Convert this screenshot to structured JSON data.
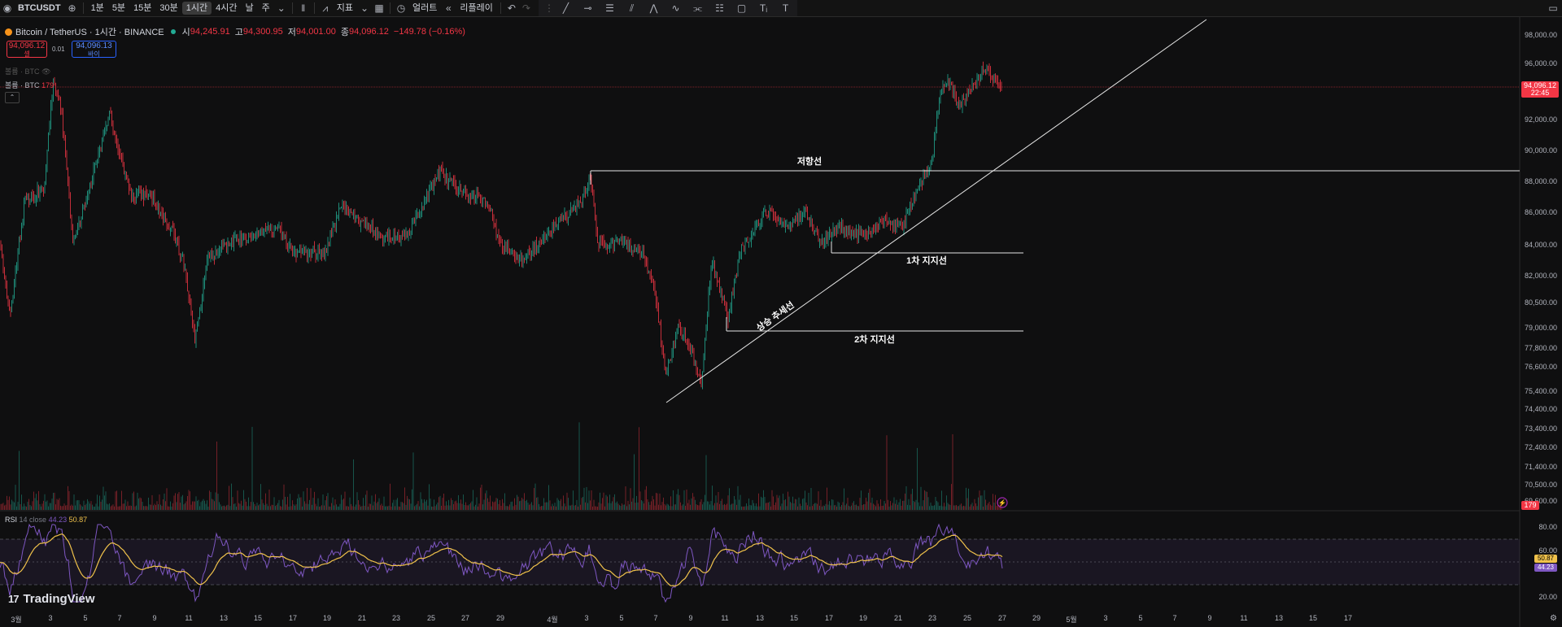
{
  "toolbar": {
    "symbol": "BTCUSDT",
    "intervals": [
      "1분",
      "5분",
      "15분",
      "30분",
      "1시간",
      "4시간",
      "날",
      "주"
    ],
    "active_interval": "1시간",
    "indicators_label": "지표",
    "alert_label": "얼러트",
    "replay_label": "리플레이"
  },
  "legend": {
    "title": "Bitcoin / TetherUS · 1시간 · BINANCE",
    "open_label": "시",
    "open": "94,245.91",
    "high_label": "고",
    "high": "94,300.95",
    "low_label": "저",
    "low": "94,001.00",
    "close_label": "종",
    "close": "94,096.12",
    "change": "−149.78 (−0.16%)"
  },
  "trade": {
    "sell_price": "94,096.12",
    "sell_label": "셀",
    "spread": "0.01",
    "buy_price": "94,096.13",
    "buy_label": "바이"
  },
  "volume_indicator": {
    "label": "볼륨 · BTC",
    "label2": "볼륨 · BTC",
    "value": "179"
  },
  "price_scale": [
    "98,000.00",
    "96,000.00",
    "92,000.00",
    "90,000.00",
    "88,000.00",
    "86,000.00",
    "84,000.00",
    "82,000.00",
    "80,500.00",
    "79,000.00",
    "77,800.00",
    "76,600.00",
    "75,400.00",
    "74,400.00",
    "73,400.00",
    "72,400.00",
    "71,400.00",
    "70,500.00",
    "69,600.00"
  ],
  "last_price": {
    "value": "94,096.12",
    "countdown": "22:45",
    "color": "#f23645"
  },
  "volume_tag": "179",
  "annotations": {
    "resistance": "저항선",
    "support1": "1차 지지선",
    "support2": "2차 지지선",
    "trendline": "상승 추세선"
  },
  "rsi": {
    "label": "RSI",
    "params": "14 close",
    "value": "44.23",
    "ma_value": "50.87",
    "scale": [
      "80.00",
      "60.00",
      "20.00"
    ],
    "colors": {
      "rsi": "#7e57c2",
      "ma": "#f0c24b"
    }
  },
  "time_axis": [
    "3월",
    "3",
    "5",
    "7",
    "9",
    "11",
    "13",
    "15",
    "17",
    "19",
    "21",
    "23",
    "25",
    "27",
    "29",
    "4월",
    "3",
    "5",
    "7",
    "9",
    "11",
    "13",
    "15",
    "17",
    "19",
    "21",
    "23",
    "25",
    "27",
    "29",
    "5월",
    "3",
    "5",
    "7",
    "9",
    "11",
    "13",
    "15",
    "17"
  ],
  "branding": "TradingView",
  "colors": {
    "up": "#22ab94",
    "down": "#f23645",
    "background": "#0f0f10"
  }
}
